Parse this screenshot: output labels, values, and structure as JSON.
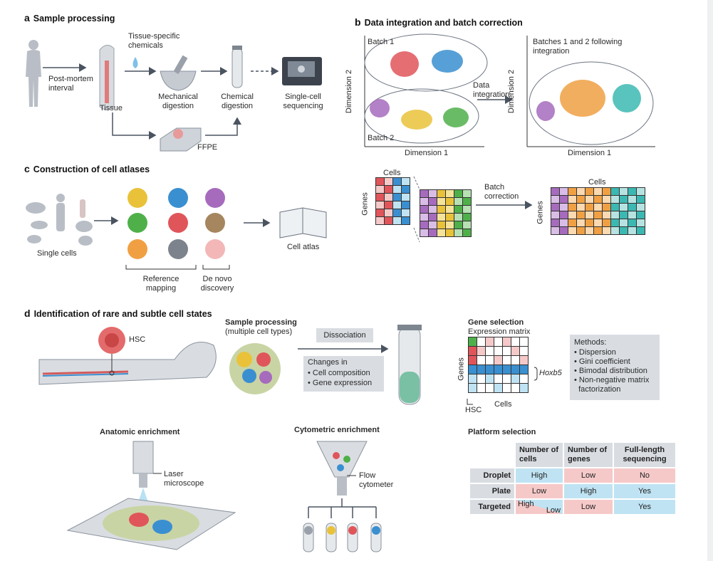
{
  "panel_a": {
    "letter": "a",
    "title": "Sample processing",
    "pm_line1": "Post-mortem",
    "pm_line2": "interval",
    "tissue": "Tissue",
    "chem_line1": "Tissue-specific",
    "chem_line2": "chemicals",
    "mech_line1": "Mechanical",
    "mech_line2": "digestion",
    "chemd_line1": "Chemical",
    "chemd_line2": "digestion",
    "seq_line1": "Single-cell",
    "seq_line2": "sequencing",
    "ffpe": "FFPE"
  },
  "panel_b": {
    "letter": "b",
    "title": "Data integration and batch correction",
    "batch1": "Batch 1",
    "batch2": "Batch 2",
    "dim1": "Dimension 1",
    "dim2": "Dimension 2",
    "int_line1": "Data",
    "int_line2": "integration",
    "after_line1": "Batches 1 and 2 following",
    "after_line2": "integration",
    "cells": "Cells",
    "genes": "Genes",
    "bc_line1": "Batch",
    "bc_line2": "correction",
    "cells2": "Cells",
    "genes2": "Genes"
  },
  "panel_c": {
    "letter": "c",
    "title": "Construction of cell atlases",
    "single_cells": "Single cells",
    "ref_line1": "Reference",
    "ref_line2": "mapping",
    "denovo_line1": "De novo",
    "denovo_line2": "discovery",
    "atlas": "Cell atlas"
  },
  "panel_d": {
    "letter": "d",
    "title": "Identification of rare and subtle cell states",
    "hsc": "HSC",
    "sp_title": "Sample processing",
    "sp_sub": "(multiple cell types)",
    "dissociation": "Dissociation",
    "changes_in": "Changes in",
    "change1": "• Cell composition",
    "change2": "• Gene expression",
    "gene_sel": "Gene selection",
    "expr_matrix": "Expression matrix",
    "genes": "Genes",
    "hoxb5": "Hoxb5",
    "hsc_label": "HSC",
    "cells": "Cells",
    "methods_title": "Methods:",
    "methods": [
      "• Dispersion",
      "• Gini coefficient",
      "• Bimodal distribution",
      "• Non-negative matrix",
      "  factorization"
    ],
    "anatomic": "Anatomic enrichment",
    "laser_line1": "Laser",
    "laser_line2": "microscope",
    "cytometric": "Cytometric enrichment",
    "flow_line1": "Flow",
    "flow_line2": "cytometer",
    "platform": "Platform selection",
    "table": {
      "headers": [
        "Number of cells",
        "Number of genes",
        "Full-length sequencing"
      ],
      "rows": [
        {
          "name": "Droplet",
          "cells": "High",
          "genes": "Low",
          "full": "No"
        },
        {
          "name": "Plate",
          "cells": "Low",
          "genes": "High",
          "full": "Yes"
        },
        {
          "name": "Targeted",
          "cells_high": "High",
          "cells_low": "Low",
          "genes": "Low",
          "full": "Yes"
        }
      ]
    }
  },
  "colors": {
    "red": "#e0555a",
    "blue": "#3a8fd0",
    "purple": "#a66bbd",
    "yellow": "#e9c23a",
    "green": "#4fb04a",
    "orange": "#f0a043",
    "teal": "#3cb8b2",
    "arrow": "#4a5360"
  }
}
